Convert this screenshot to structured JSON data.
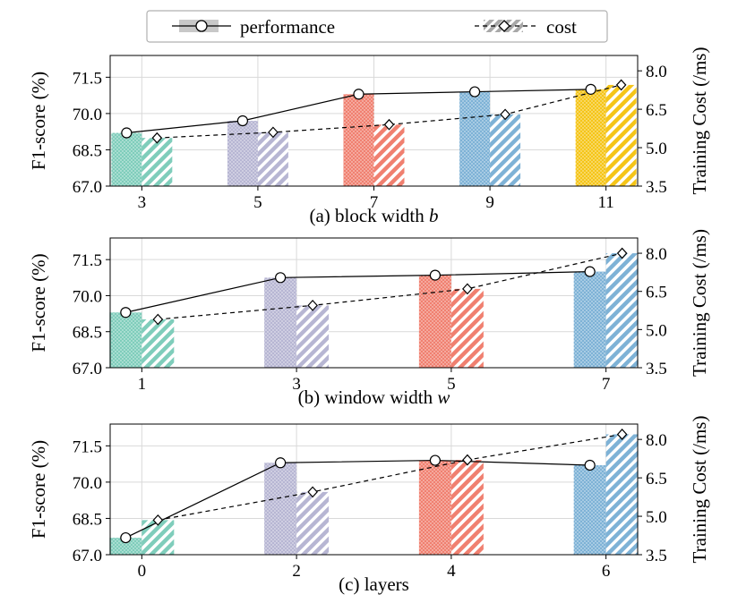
{
  "legend": {
    "performance_label": "performance",
    "cost_label": "cost"
  },
  "colors": {
    "palette": [
      "#7fcdbb",
      "#b7b6d3",
      "#f08070",
      "#7eb2d6",
      "#f5c518"
    ],
    "grid": "#d9d9d9",
    "axis": "#000000"
  },
  "chart_data": [
    {
      "type": "bar",
      "categories": [
        "3",
        "5",
        "7",
        "9",
        "11"
      ],
      "xlabel_prefix": "(a) block width ",
      "xlabel_var": "b",
      "ylabel_left": "F1-score (%)",
      "ylabel_right": "Training Cost (/ms)",
      "ylim_left": [
        67.0,
        72.4
      ],
      "yticks_left": [
        "67.0",
        "68.5",
        "70.0",
        "71.5"
      ],
      "ylim_right": [
        3.5,
        8.6
      ],
      "yticks_right": [
        "3.5",
        "5.0",
        "6.5",
        "8.0"
      ],
      "series": [
        {
          "name": "performance",
          "values": [
            69.2,
            69.7,
            70.8,
            70.9,
            71.0
          ]
        },
        {
          "name": "cost",
          "values": [
            5.38,
            5.6,
            5.9,
            6.3,
            7.45
          ]
        }
      ],
      "grid": true
    },
    {
      "type": "bar",
      "categories": [
        "1",
        "3",
        "5",
        "7"
      ],
      "xlabel_prefix": "(b) window width ",
      "xlabel_var": "w",
      "ylabel_left": "F1-score (%)",
      "ylabel_right": "Training Cost (/ms)",
      "ylim_left": [
        67.0,
        72.4
      ],
      "yticks_left": [
        "67.0",
        "68.5",
        "70.0",
        "71.5"
      ],
      "ylim_right": [
        3.5,
        8.6
      ],
      "yticks_right": [
        "3.5",
        "5.0",
        "6.5",
        "8.0"
      ],
      "series": [
        {
          "name": "performance",
          "values": [
            69.3,
            70.75,
            70.85,
            71.0
          ]
        },
        {
          "name": "cost",
          "values": [
            5.4,
            5.95,
            6.6,
            8.0
          ]
        }
      ],
      "grid": true
    },
    {
      "type": "bar",
      "categories": [
        "0",
        "2",
        "4",
        "6"
      ],
      "xlabel_prefix": "(c) layers",
      "xlabel_var": "",
      "ylabel_left": "F1-score (%)",
      "ylabel_right": "Training Cost (/ms)",
      "ylim_left": [
        67.0,
        72.4
      ],
      "yticks_left": [
        "67.0",
        "68.5",
        "70.0",
        "71.5"
      ],
      "ylim_right": [
        3.5,
        8.6
      ],
      "yticks_right": [
        "3.5",
        "5.0",
        "6.5",
        "8.0"
      ],
      "series": [
        {
          "name": "performance",
          "values": [
            67.7,
            70.8,
            70.9,
            70.7
          ]
        },
        {
          "name": "cost",
          "values": [
            4.85,
            5.95,
            7.2,
            8.2
          ]
        }
      ],
      "grid": true
    }
  ]
}
